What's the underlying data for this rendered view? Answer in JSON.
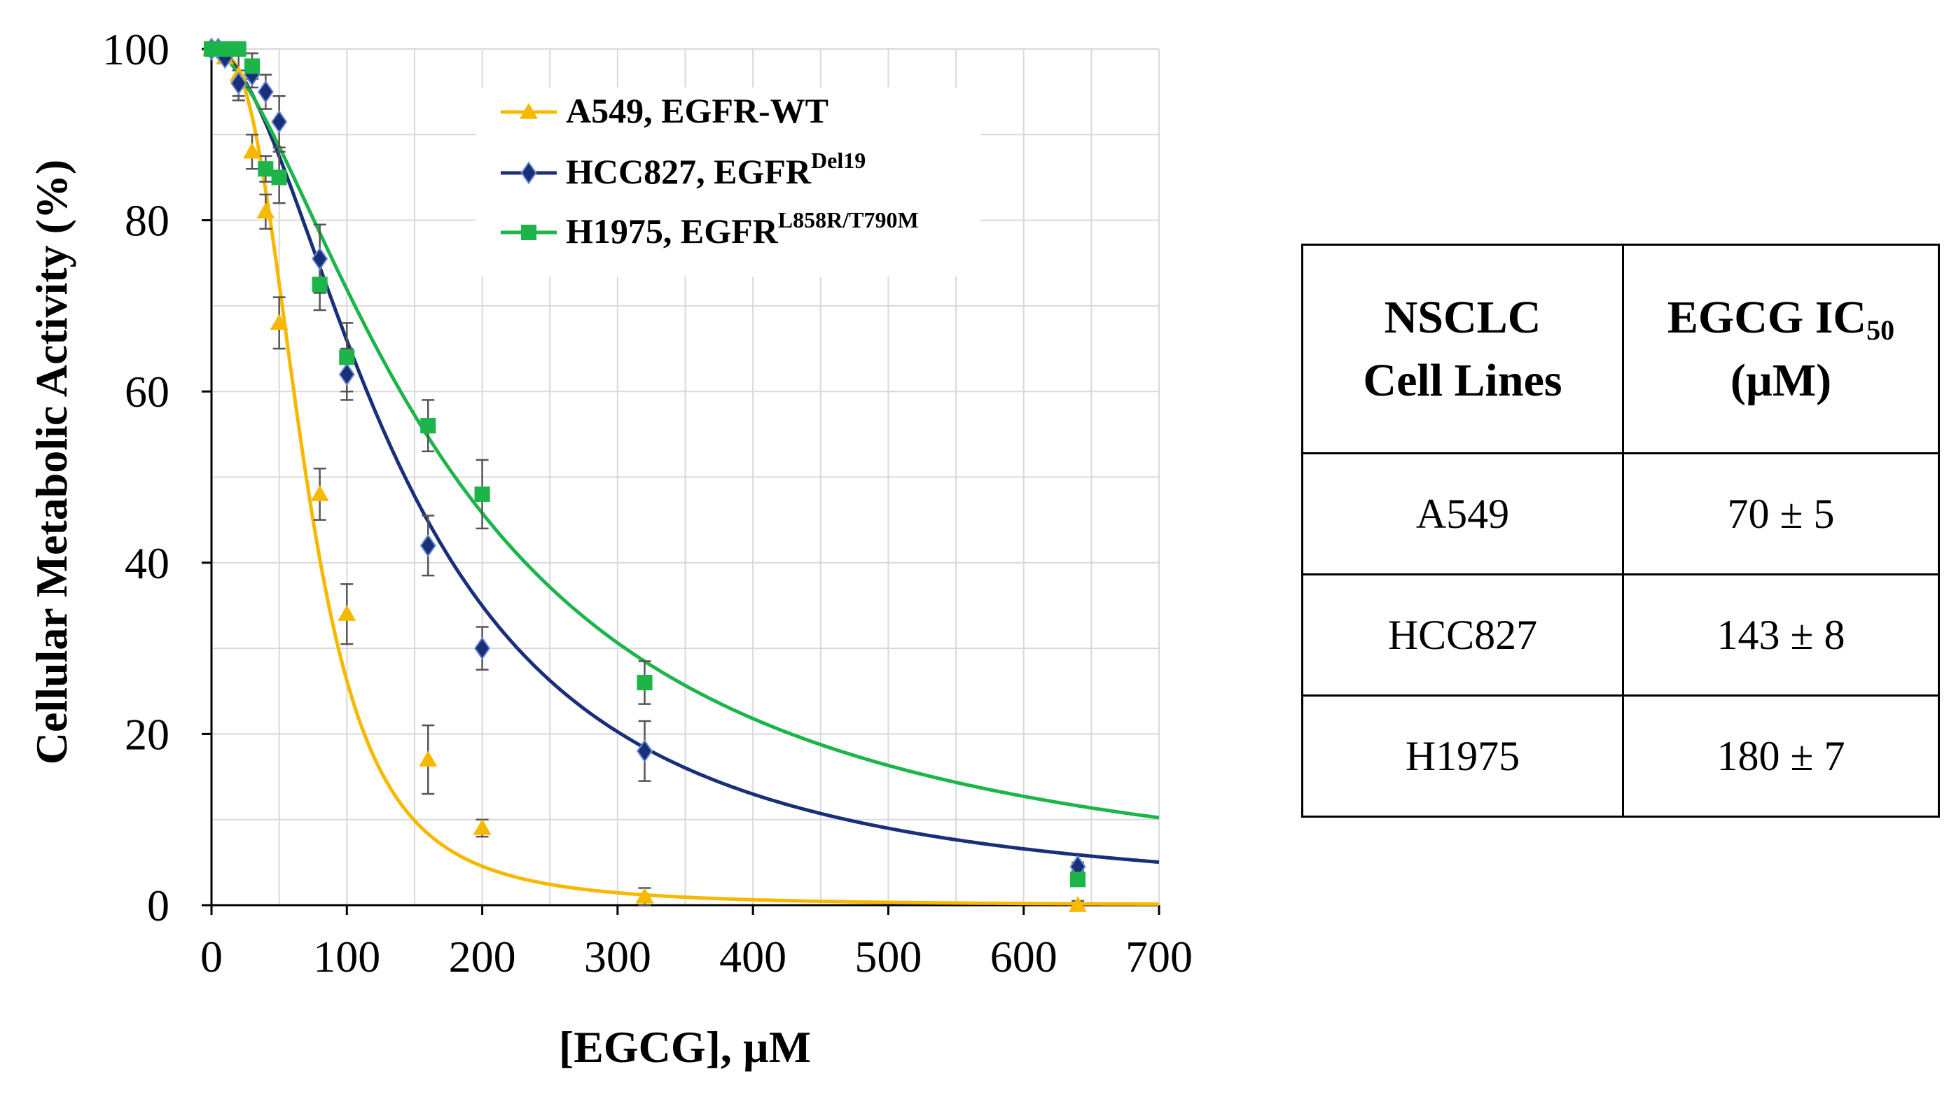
{
  "chart_data": {
    "type": "scatter",
    "xlabel": "[EGCG], µM",
    "ylabel": "Cellular Metabolic Activity (%)",
    "xlim": [
      0,
      700
    ],
    "ylim": [
      0,
      100
    ],
    "xticks": [
      0,
      100,
      200,
      300,
      400,
      500,
      600,
      700
    ],
    "yticks": [
      0,
      20,
      40,
      60,
      80,
      100
    ],
    "grid": true,
    "legend_position": "top-center",
    "series": [
      {
        "name": "A549, EGFR-WT",
        "label_main": "A549, EGFR-WT",
        "label_sup": "",
        "marker": "triangle",
        "color": "#f7b800",
        "x": [
          0,
          5,
          10,
          20,
          30,
          40,
          50,
          80,
          100,
          160,
          200,
          320,
          640
        ],
        "y": [
          100,
          100,
          99,
          97,
          88,
          81,
          68,
          48,
          34,
          17,
          9,
          1,
          0
        ],
        "err": [
          0,
          0,
          0,
          3,
          2,
          2,
          3,
          3,
          3.5,
          4,
          1,
          1,
          0.5
        ],
        "fit": {
          "ic50": 70,
          "hill": 2.9
        }
      },
      {
        "name": "HCC827, EGFR Del19",
        "label_main": "HCC827, EGFR",
        "label_sup": "Del19",
        "marker": "diamond",
        "color": "#1a2f7a",
        "x": [
          0,
          5,
          10,
          20,
          30,
          40,
          50,
          80,
          100,
          160,
          200,
          320,
          640
        ],
        "y": [
          100,
          100,
          99,
          96,
          97,
          95,
          91.5,
          75.5,
          62,
          42,
          30,
          18,
          4.5
        ],
        "err": [
          0,
          0,
          0,
          1.5,
          1.5,
          2,
          3,
          4,
          3,
          3.5,
          2.5,
          3.5,
          0.5
        ],
        "fit": {
          "ic50": 143,
          "hill": 1.85
        }
      },
      {
        "name": "H1975, EGFR L858R/T790M",
        "label_main": "H1975, EGFR",
        "label_sup": "L858R/T790M",
        "marker": "square",
        "color": "#1db54a",
        "x": [
          0,
          5,
          10,
          20,
          30,
          40,
          50,
          80,
          100,
          160,
          200,
          320,
          640
        ],
        "y": [
          100,
          100,
          100,
          100,
          98,
          86,
          85,
          72.5,
          64,
          56,
          48,
          26,
          3
        ],
        "err": [
          0,
          0,
          0,
          0,
          1.5,
          1.5,
          3,
          3,
          4,
          3,
          4,
          2.5,
          0.5
        ],
        "fit": {
          "ic50": 180,
          "hill": 1.6
        }
      }
    ]
  },
  "table": {
    "header": {
      "col1_line1": "NSCLC",
      "col1_line2": "Cell Lines",
      "col2_main": "EGCG IC",
      "col2_sub": "50",
      "col2_line2": "(µM)"
    },
    "rows": [
      {
        "cell_line": "A549",
        "ic50": "70 ± 5"
      },
      {
        "cell_line": "HCC827",
        "ic50": "143 ± 8"
      },
      {
        "cell_line": "H1975",
        "ic50": "180 ± 7"
      }
    ]
  }
}
